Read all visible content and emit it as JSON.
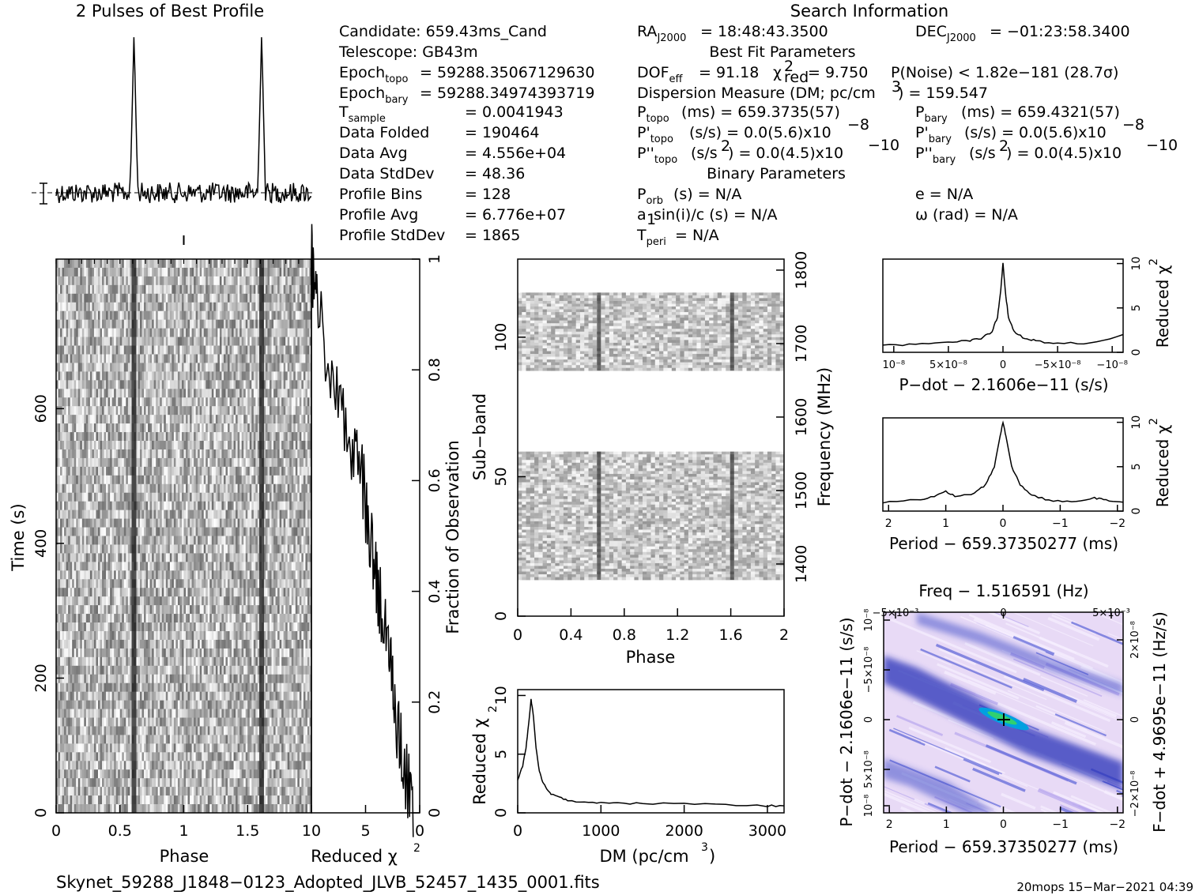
{
  "header": {
    "profile_title": "2 Pulses of Best Profile",
    "search_title": "Search Information",
    "best_fit_title": "Best Fit Parameters",
    "binary_title": "Binary Parameters"
  },
  "candidate": {
    "candidate": "Candidate:  659.43ms_Cand",
    "telescope": "Telescope:  GB43m",
    "epoch_topo_val": "= 59288.35067129630",
    "epoch_bary_val": "= 59288.34974393719",
    "t_sample_val": "=   0.0041943",
    "data_folded": "Data Folded",
    "data_folded_val": "=   190464",
    "data_avg": "Data Avg",
    "data_avg_val": "=   4.556e+04",
    "data_stddev": "Data StdDev",
    "data_stddev_val": "=   48.36",
    "profile_bins": "Profile Bins",
    "profile_bins_val": "=   128",
    "profile_avg": "Profile Avg",
    "profile_avg_val": "=   6.776e+07",
    "profile_stddev": "Profile StdDev",
    "profile_stddev_val": "=   1865"
  },
  "search": {
    "ra_val": "= 18:48:43.3500",
    "dec_val": "= −01:23:58.3400",
    "dof_val": "= 91.18",
    "chi2_val": "= 9.750",
    "pnoise": "P(Noise) < 1.82e−181   (28.7σ)",
    "dm": "Dispersion Measure (DM; pc/cm",
    "dm_val": ") = 159.547",
    "p_topo_val": "(ms)  =   659.3735(57)",
    "p_bary_val": "(ms)  =   659.4321(57)",
    "pdot_topo_val": "(s/s) = 0.0(5.6)x10",
    "pdot_bary_val": "(s/s) = 0.0(5.6)x10",
    "pdot_exp": "−8",
    "pddot_topo_val": "(s/s",
    "pddot_bary_val": "(s/s",
    "pddot_rest": ") = 0.0(4.5)x10",
    "pddot_exp": "−10",
    "p_orb_val": "(s) = N/A",
    "a1_val": "a",
    "a1_rest": "sin(i)/c (s) = N/A",
    "t_peri_val": "= N/A",
    "e_val": "e = N/A",
    "omega_val": "ω (rad) = N/A"
  },
  "axes": {
    "phase": "Phase",
    "time": "Time (s)",
    "reduced_chi2": "Reduced χ",
    "fraction": "Fraction of Observation",
    "subband": "Sub−band",
    "frequency": "Frequency (MHz)",
    "dm_axis": "DM (pc/cm",
    "pdot_axis": "P−dot − 2.1606e−11 (s/s)",
    "period_axis": "Period − 659.37350277 (ms)",
    "freq_axis": "Freq − 1.516591 (Hz)",
    "pdot_left": "P−dot − 2.1606e−11 (s/s)",
    "fdot_right": "F−dot + 4.9695e−11 (Hz/s)"
  },
  "footer": {
    "filename": "Skynet_59288_J1848−0123_Adopted_JLVB_52457_1435_0001.fits",
    "timestamp": "20mops 15−Mar−2021 04:39"
  },
  "chart_data": [
    {
      "type": "line",
      "name": "pulse-profile",
      "title": "2 Pulses of Best Profile",
      "x_range": [
        0,
        2
      ],
      "peaks_at_phase": [
        0.61,
        1.61
      ],
      "baseline": 0
    },
    {
      "type": "heatmap",
      "name": "time-vs-phase",
      "xlabel": "Phase",
      "ylabel": "Time (s)",
      "x_ticks": [
        "0",
        "0.5",
        "1",
        "1.5"
      ],
      "y_ticks": [
        "0",
        "200",
        "400",
        "600"
      ],
      "xlim": [
        0,
        2
      ],
      "ylim": [
        0,
        822
      ],
      "pulse_phases": [
        0.61,
        1.61
      ]
    },
    {
      "type": "line",
      "name": "reduced-chi2-vs-fraction",
      "xlabel": "Reduced χ²",
      "ylabel": "Fraction of Observation",
      "x_ticks": [
        "10",
        "5",
        "0"
      ],
      "y_ticks": [
        "0",
        "0.2",
        "0.4",
        "0.6",
        "0.8",
        "1"
      ],
      "xlim": [
        10,
        0
      ],
      "ylim": [
        0,
        1
      ],
      "x": [
        0.6,
        1.0,
        1.6,
        2.0,
        2.3,
        2.6,
        2.9,
        3.3,
        3.8,
        4.1,
        4.5,
        4.9,
        5.4,
        6.0,
        6.6,
        7.3,
        8.0,
        8.7,
        9.5,
        9.8
      ],
      "y": [
        0.0,
        0.05,
        0.1,
        0.15,
        0.2,
        0.25,
        0.3,
        0.35,
        0.4,
        0.45,
        0.5,
        0.55,
        0.6,
        0.65,
        0.7,
        0.75,
        0.8,
        0.85,
        0.9,
        0.95
      ]
    },
    {
      "type": "heatmap",
      "name": "subband-vs-phase",
      "xlabel": "Phase",
      "ylabel": "Sub−band",
      "y2label": "Frequency (MHz)",
      "x_ticks": [
        "0",
        "0.4",
        "0.8",
        "1.2",
        "1.6",
        "2"
      ],
      "y_ticks": [
        "0",
        "50",
        "100"
      ],
      "y2_ticks": [
        "1400",
        "1500",
        "1600",
        "1700",
        "1800"
      ],
      "xlim": [
        0,
        2
      ],
      "ylim": [
        0,
        128
      ],
      "y2lim": [
        1329,
        1815
      ],
      "filled_bands": [
        [
          13,
          59
        ],
        [
          88,
          116
        ]
      ],
      "pulse_phases": [
        0.61,
        1.61
      ]
    },
    {
      "type": "line",
      "name": "dm-curve",
      "xlabel": "DM (pc/cm³)",
      "ylabel": "Reduced χ²",
      "x_ticks": [
        "0",
        "1000",
        "2000",
        "3000"
      ],
      "y_ticks": [
        "0",
        "5",
        "10"
      ],
      "xlim": [
        0,
        3200
      ],
      "ylim": [
        0,
        10.5
      ],
      "x": [
        0,
        60,
        100,
        130,
        160,
        190,
        220,
        260,
        300,
        350,
        400,
        500,
        600,
        800,
        1000,
        1200,
        1500,
        2000,
        2500,
        3000,
        3200
      ],
      "y": [
        2.8,
        4.0,
        5.5,
        7.5,
        9.7,
        8.2,
        5.5,
        3.6,
        2.6,
        2.0,
        1.6,
        1.3,
        1.1,
        0.9,
        0.9,
        0.8,
        0.8,
        0.8,
        0.7,
        0.6,
        0.6
      ]
    },
    {
      "type": "line",
      "name": "pdot-curve",
      "xlabel": "P−dot − 2.1606e−11 (s/s)",
      "ylabel": "Reduced χ²",
      "x_ticks": [
        "10⁻⁸",
        "5×10⁻⁸",
        "0",
        "−5×10⁻⁸",
        "−10⁻⁸"
      ],
      "y_ticks": [
        "0",
        "5",
        "10"
      ],
      "xlim": [
        1.1e-08,
        -1.1e-08
      ],
      "ylim": [
        0,
        10.5
      ],
      "x": [
        1.1e-08,
        8e-09,
        5e-09,
        3e-09,
        2e-09,
        1e-09,
        5e-10,
        2e-10,
        0,
        -2e-10,
        -5e-10,
        -1e-09,
        -2e-09,
        -3e-09,
        -5e-09,
        -8e-09,
        -1.1e-08
      ],
      "y": [
        0.7,
        1.0,
        1.2,
        1.3,
        1.6,
        2.3,
        4.0,
        7.0,
        10.0,
        7.0,
        4.0,
        2.3,
        1.6,
        1.3,
        1.0,
        1.0,
        2.0
      ]
    },
    {
      "type": "line",
      "name": "period-curve",
      "xlabel": "Period − 659.37350277 (ms)",
      "ylabel": "Reduced χ²",
      "x_ticks": [
        "2",
        "1",
        "0",
        "−1",
        "−2"
      ],
      "y_ticks": [
        "0",
        "5",
        "10"
      ],
      "xlim": [
        2.1,
        -2.1
      ],
      "ylim": [
        0,
        10.5
      ],
      "x": [
        2.1,
        1.5,
        1.2,
        1.0,
        0.8,
        0.5,
        0.3,
        0.15,
        0.05,
        0,
        -0.05,
        -0.15,
        -0.3,
        -0.5,
        -0.8,
        -1.2,
        -1.6,
        -1.8,
        -2.1
      ],
      "y": [
        1.0,
        1.3,
        1.6,
        2.2,
        1.6,
        2.0,
        3.0,
        5.0,
        8.5,
        10.0,
        8.5,
        5.0,
        3.0,
        1.8,
        1.2,
        1.0,
        1.5,
        1.2,
        1.0
      ]
    },
    {
      "type": "heatmap",
      "name": "pdot-vs-period",
      "title": "Freq − 1.516591 (Hz)",
      "xlabel": "Period − 659.37350277 (ms)",
      "ylabel": "P−dot − 2.1606e−11 (s/s)",
      "y2label": "F−dot + 4.9695e−11 (Hz/s)",
      "x_ticks": [
        "2",
        "1",
        "0",
        "−1",
        "−2"
      ],
      "x2_ticks": [
        "−5×10⁻³",
        "0",
        "5×10⁻³"
      ],
      "y_ticks": [
        "10⁻⁸",
        "−5×10⁻⁸",
        "0",
        "5×10⁻⁸",
        "10⁻⁸"
      ],
      "y2_ticks": [
        "2×10⁻⁸",
        "0",
        "−2×10⁻⁸"
      ],
      "colors": {
        "background": "#e6d6f5",
        "low": "#3040d0",
        "mid": "#00a0e0",
        "peak": "#30d070"
      }
    }
  ]
}
